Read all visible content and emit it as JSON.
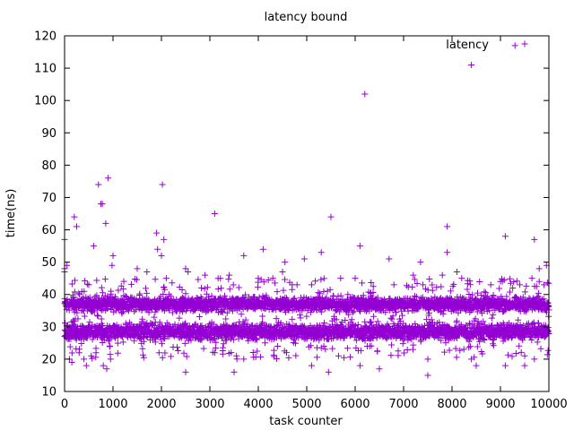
{
  "chart_data": {
    "type": "scatter",
    "title": "latency bound",
    "xlabel": "task counter",
    "ylabel": "time(ns)",
    "xlim": [
      0,
      10000
    ],
    "ylim": [
      10,
      120
    ],
    "x_ticks": [
      0,
      1000,
      2000,
      3000,
      4000,
      5000,
      6000,
      7000,
      8000,
      9000,
      10000
    ],
    "y_ticks": [
      10,
      20,
      30,
      40,
      50,
      60,
      70,
      80,
      90,
      100,
      110,
      120
    ],
    "grid": false,
    "legend_position": "top-right",
    "marker": "plus",
    "series": [
      {
        "name": "latency",
        "color": "#9400d3",
        "bands": [
          {
            "description": "dense band",
            "x_range": [
              0,
              10000
            ],
            "y_center": 37,
            "y_spread": [
              34,
              40
            ]
          },
          {
            "description": "dense band",
            "x_range": [
              0,
              10000
            ],
            "y_center": 29,
            "y_spread": [
              25,
              32
            ]
          }
        ],
        "points": [
          [
            0,
            57
          ],
          [
            0,
            48
          ],
          [
            0,
            47
          ],
          [
            50,
            49
          ],
          [
            100,
            20
          ],
          [
            150,
            19
          ],
          [
            200,
            64
          ],
          [
            250,
            61
          ],
          [
            300,
            22
          ],
          [
            400,
            20
          ],
          [
            450,
            18
          ],
          [
            500,
            43
          ],
          [
            550,
            21
          ],
          [
            600,
            55
          ],
          [
            650,
            22
          ],
          [
            700,
            74
          ],
          [
            750,
            68
          ],
          [
            780,
            68
          ],
          [
            800,
            18
          ],
          [
            850,
            62
          ],
          [
            870,
            17
          ],
          [
            900,
            76
          ],
          [
            950,
            20
          ],
          [
            980,
            49
          ],
          [
            1000,
            52
          ],
          [
            1500,
            48
          ],
          [
            1700,
            47
          ],
          [
            1900,
            59
          ],
          [
            1920,
            54
          ],
          [
            1950,
            22
          ],
          [
            2000,
            52
          ],
          [
            2020,
            74
          ],
          [
            2050,
            57
          ],
          [
            2100,
            45
          ],
          [
            2500,
            16
          ],
          [
            2500,
            48
          ],
          [
            2550,
            47
          ],
          [
            2900,
            46
          ],
          [
            3100,
            65
          ],
          [
            3100,
            22
          ],
          [
            3400,
            46
          ],
          [
            3500,
            16
          ],
          [
            3550,
            21
          ],
          [
            3700,
            52
          ],
          [
            3700,
            20
          ],
          [
            4000,
            45
          ],
          [
            4100,
            54
          ],
          [
            4300,
            45
          ],
          [
            4400,
            24
          ],
          [
            4500,
            47
          ],
          [
            4550,
            50
          ],
          [
            4700,
            43
          ],
          [
            4800,
            43
          ],
          [
            4950,
            51
          ],
          [
            5100,
            18
          ],
          [
            5100,
            43
          ],
          [
            5300,
            53
          ],
          [
            5450,
            16
          ],
          [
            5500,
            64
          ],
          [
            5700,
            45
          ],
          [
            5850,
            40
          ],
          [
            6000,
            45
          ],
          [
            6100,
            55
          ],
          [
            6100,
            18
          ],
          [
            6200,
            102
          ],
          [
            6250,
            24
          ],
          [
            6300,
            24
          ],
          [
            6500,
            17
          ],
          [
            6700,
            51
          ],
          [
            6800,
            43
          ],
          [
            7200,
            46
          ],
          [
            7350,
            50
          ],
          [
            7400,
            43
          ],
          [
            7500,
            20
          ],
          [
            7500,
            15
          ],
          [
            7800,
            46
          ],
          [
            7900,
            61
          ],
          [
            7900,
            53
          ],
          [
            8100,
            47
          ],
          [
            8200,
            45
          ],
          [
            8400,
            111
          ],
          [
            8400,
            20
          ],
          [
            8500,
            18
          ],
          [
            8800,
            43
          ],
          [
            9000,
            44
          ],
          [
            9100,
            58
          ],
          [
            9100,
            18
          ],
          [
            9300,
            117
          ],
          [
            9400,
            43
          ],
          [
            9500,
            21
          ],
          [
            9500,
            18
          ],
          [
            9650,
            45
          ],
          [
            9700,
            57
          ],
          [
            9700,
            20
          ],
          [
            9800,
            44
          ],
          [
            9800,
            48
          ],
          [
            9900,
            43
          ],
          [
            9950,
            49
          ]
        ]
      }
    ]
  }
}
